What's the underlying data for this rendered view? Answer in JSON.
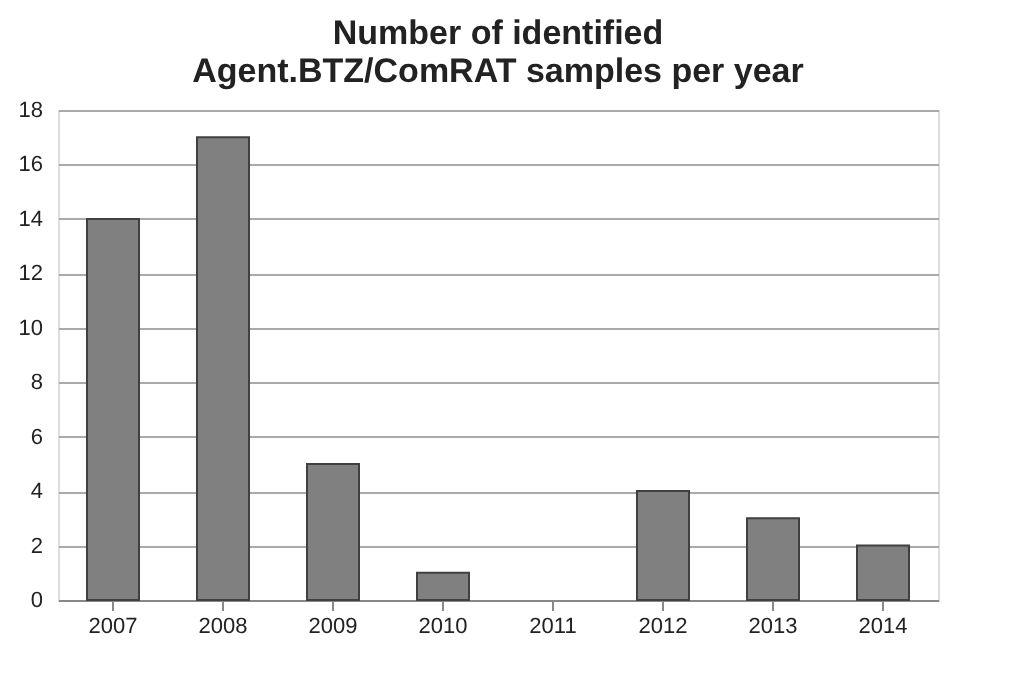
{
  "chart_data": {
    "type": "bar",
    "title": "Number of identified\nAgent.BTZ/ComRAT samples per year",
    "categories": [
      "2007",
      "2008",
      "2009",
      "2010",
      "2011",
      "2012",
      "2013",
      "2014"
    ],
    "values": [
      14,
      17,
      5,
      1,
      0,
      4,
      3,
      2
    ],
    "color": "#808080",
    "ylim": [
      0,
      18
    ],
    "yticks": [
      0,
      2,
      4,
      6,
      8,
      10,
      12,
      14,
      16,
      18
    ],
    "grid": "y"
  }
}
